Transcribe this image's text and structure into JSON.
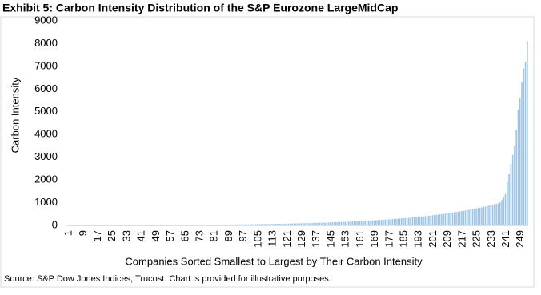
{
  "chart_data": {
    "type": "bar",
    "title": "Exhibit 5: Carbon Intensity Distribution of the S&P Eurozone LargeMidCap",
    "x_label": "Companies Sorted Smallest to Largest by Their Carbon Intensity",
    "y_label": "Carbon Intensity",
    "source": "Source: S&P Dow Jones Indices, Trucost. Chart is provided for illustrative purposes.",
    "color": "#9dc3e6",
    "ylim": [
      0,
      9000
    ],
    "yticks": [
      0,
      1000,
      2000,
      3000,
      4000,
      5000,
      6000,
      7000,
      8000,
      9000
    ],
    "grid": false,
    "categories": [
      "1",
      null,
      null,
      null,
      null,
      null,
      null,
      null,
      "9",
      null,
      null,
      null,
      null,
      null,
      null,
      null,
      "17",
      null,
      null,
      null,
      null,
      null,
      null,
      null,
      "25",
      null,
      null,
      null,
      null,
      null,
      null,
      null,
      "33",
      null,
      null,
      null,
      null,
      null,
      null,
      null,
      "41",
      null,
      null,
      null,
      null,
      null,
      null,
      null,
      "49",
      null,
      null,
      null,
      null,
      null,
      null,
      null,
      "57",
      null,
      null,
      null,
      null,
      null,
      null,
      null,
      "65",
      null,
      null,
      null,
      null,
      null,
      null,
      null,
      "73",
      null,
      null,
      null,
      null,
      null,
      null,
      null,
      "81",
      null,
      null,
      null,
      null,
      null,
      null,
      null,
      "89",
      null,
      null,
      null,
      null,
      null,
      null,
      null,
      "97",
      null,
      null,
      null,
      null,
      null,
      null,
      null,
      "105",
      null,
      null,
      null,
      null,
      null,
      null,
      null,
      "113",
      null,
      null,
      null,
      null,
      null,
      null,
      null,
      "121",
      null,
      null,
      null,
      null,
      null,
      null,
      null,
      "129",
      null,
      null,
      null,
      null,
      null,
      null,
      null,
      "137",
      null,
      null,
      null,
      null,
      null,
      null,
      null,
      "145",
      null,
      null,
      null,
      null,
      null,
      null,
      null,
      "153",
      null,
      null,
      null,
      null,
      null,
      null,
      null,
      "161",
      null,
      null,
      null,
      null,
      null,
      null,
      null,
      "169",
      null,
      null,
      null,
      null,
      null,
      null,
      null,
      "177",
      null,
      null,
      null,
      null,
      null,
      null,
      null,
      "185",
      null,
      null,
      null,
      null,
      null,
      null,
      null,
      "193",
      null,
      null,
      null,
      null,
      null,
      null,
      null,
      "201",
      null,
      null,
      null,
      null,
      null,
      null,
      null,
      "209",
      null,
      null,
      null,
      null,
      null,
      null,
      null,
      "217",
      null,
      null,
      null,
      null,
      null,
      null,
      null,
      "225",
      null,
      null,
      null,
      null,
      null,
      null,
      null,
      "233",
      null,
      null,
      null,
      null,
      null,
      null,
      null,
      "241",
      null,
      null,
      null,
      null,
      null,
      null,
      null,
      "249",
      null,
      null,
      null,
      null
    ],
    "values": [
      0,
      0,
      0,
      0,
      1,
      1,
      1,
      1,
      1,
      1,
      2,
      2,
      2,
      2,
      2,
      3,
      3,
      3,
      3,
      3,
      4,
      4,
      4,
      4,
      5,
      5,
      5,
      5,
      6,
      6,
      6,
      7,
      7,
      7,
      8,
      8,
      8,
      9,
      9,
      9,
      10,
      10,
      11,
      11,
      11,
      12,
      12,
      13,
      13,
      13,
      14,
      14,
      15,
      15,
      16,
      16,
      17,
      17,
      18,
      18,
      19,
      19,
      20,
      20,
      21,
      21,
      22,
      22,
      23,
      23,
      24,
      24,
      25,
      26,
      26,
      27,
      28,
      28,
      29,
      30,
      30,
      31,
      32,
      33,
      33,
      34,
      35,
      36,
      37,
      38,
      39,
      40,
      41,
      42,
      43,
      44,
      45,
      46,
      47,
      48,
      49,
      50,
      51,
      53,
      54,
      55,
      56,
      58,
      59,
      60,
      62,
      63,
      65,
      66,
      68,
      69,
      71,
      72,
      74,
      76,
      77,
      79,
      81,
      83,
      85,
      87,
      89,
      91,
      93,
      95,
      97,
      99,
      102,
      104,
      106,
      109,
      111,
      114,
      116,
      119,
      121,
      124,
      127,
      130,
      133,
      136,
      139,
      142,
      145,
      148,
      152,
      155,
      158,
      162,
      166,
      169,
      173,
      177,
      181,
      185,
      189,
      193,
      197,
      201,
      206,
      210,
      215,
      219,
      224,
      229,
      234,
      239,
      244,
      250,
      255,
      261,
      266,
      272,
      278,
      284,
      290,
      297,
      303,
      310,
      316,
      323,
      330,
      337,
      345,
      352,
      360,
      368,
      376,
      384,
      392,
      401,
      409,
      418,
      427,
      437,
      446,
      456,
      466,
      476,
      486,
      497,
      507,
      518,
      530,
      541,
      553,
      565,
      577,
      590,
      603,
      616,
      629,
      643,
      657,
      671,
      686,
      701,
      716,
      731,
      747,
      764,
      780,
      797,
      815,
      833,
      851,
      870,
      889,
      908,
      928,
      948,
      969,
      1010,
      1120,
      1250,
      1380,
      1900,
      2250,
      2700,
      3100,
      3500,
      4200,
      5100,
      5600,
      6300,
      6900,
      7200,
      8100
    ]
  }
}
